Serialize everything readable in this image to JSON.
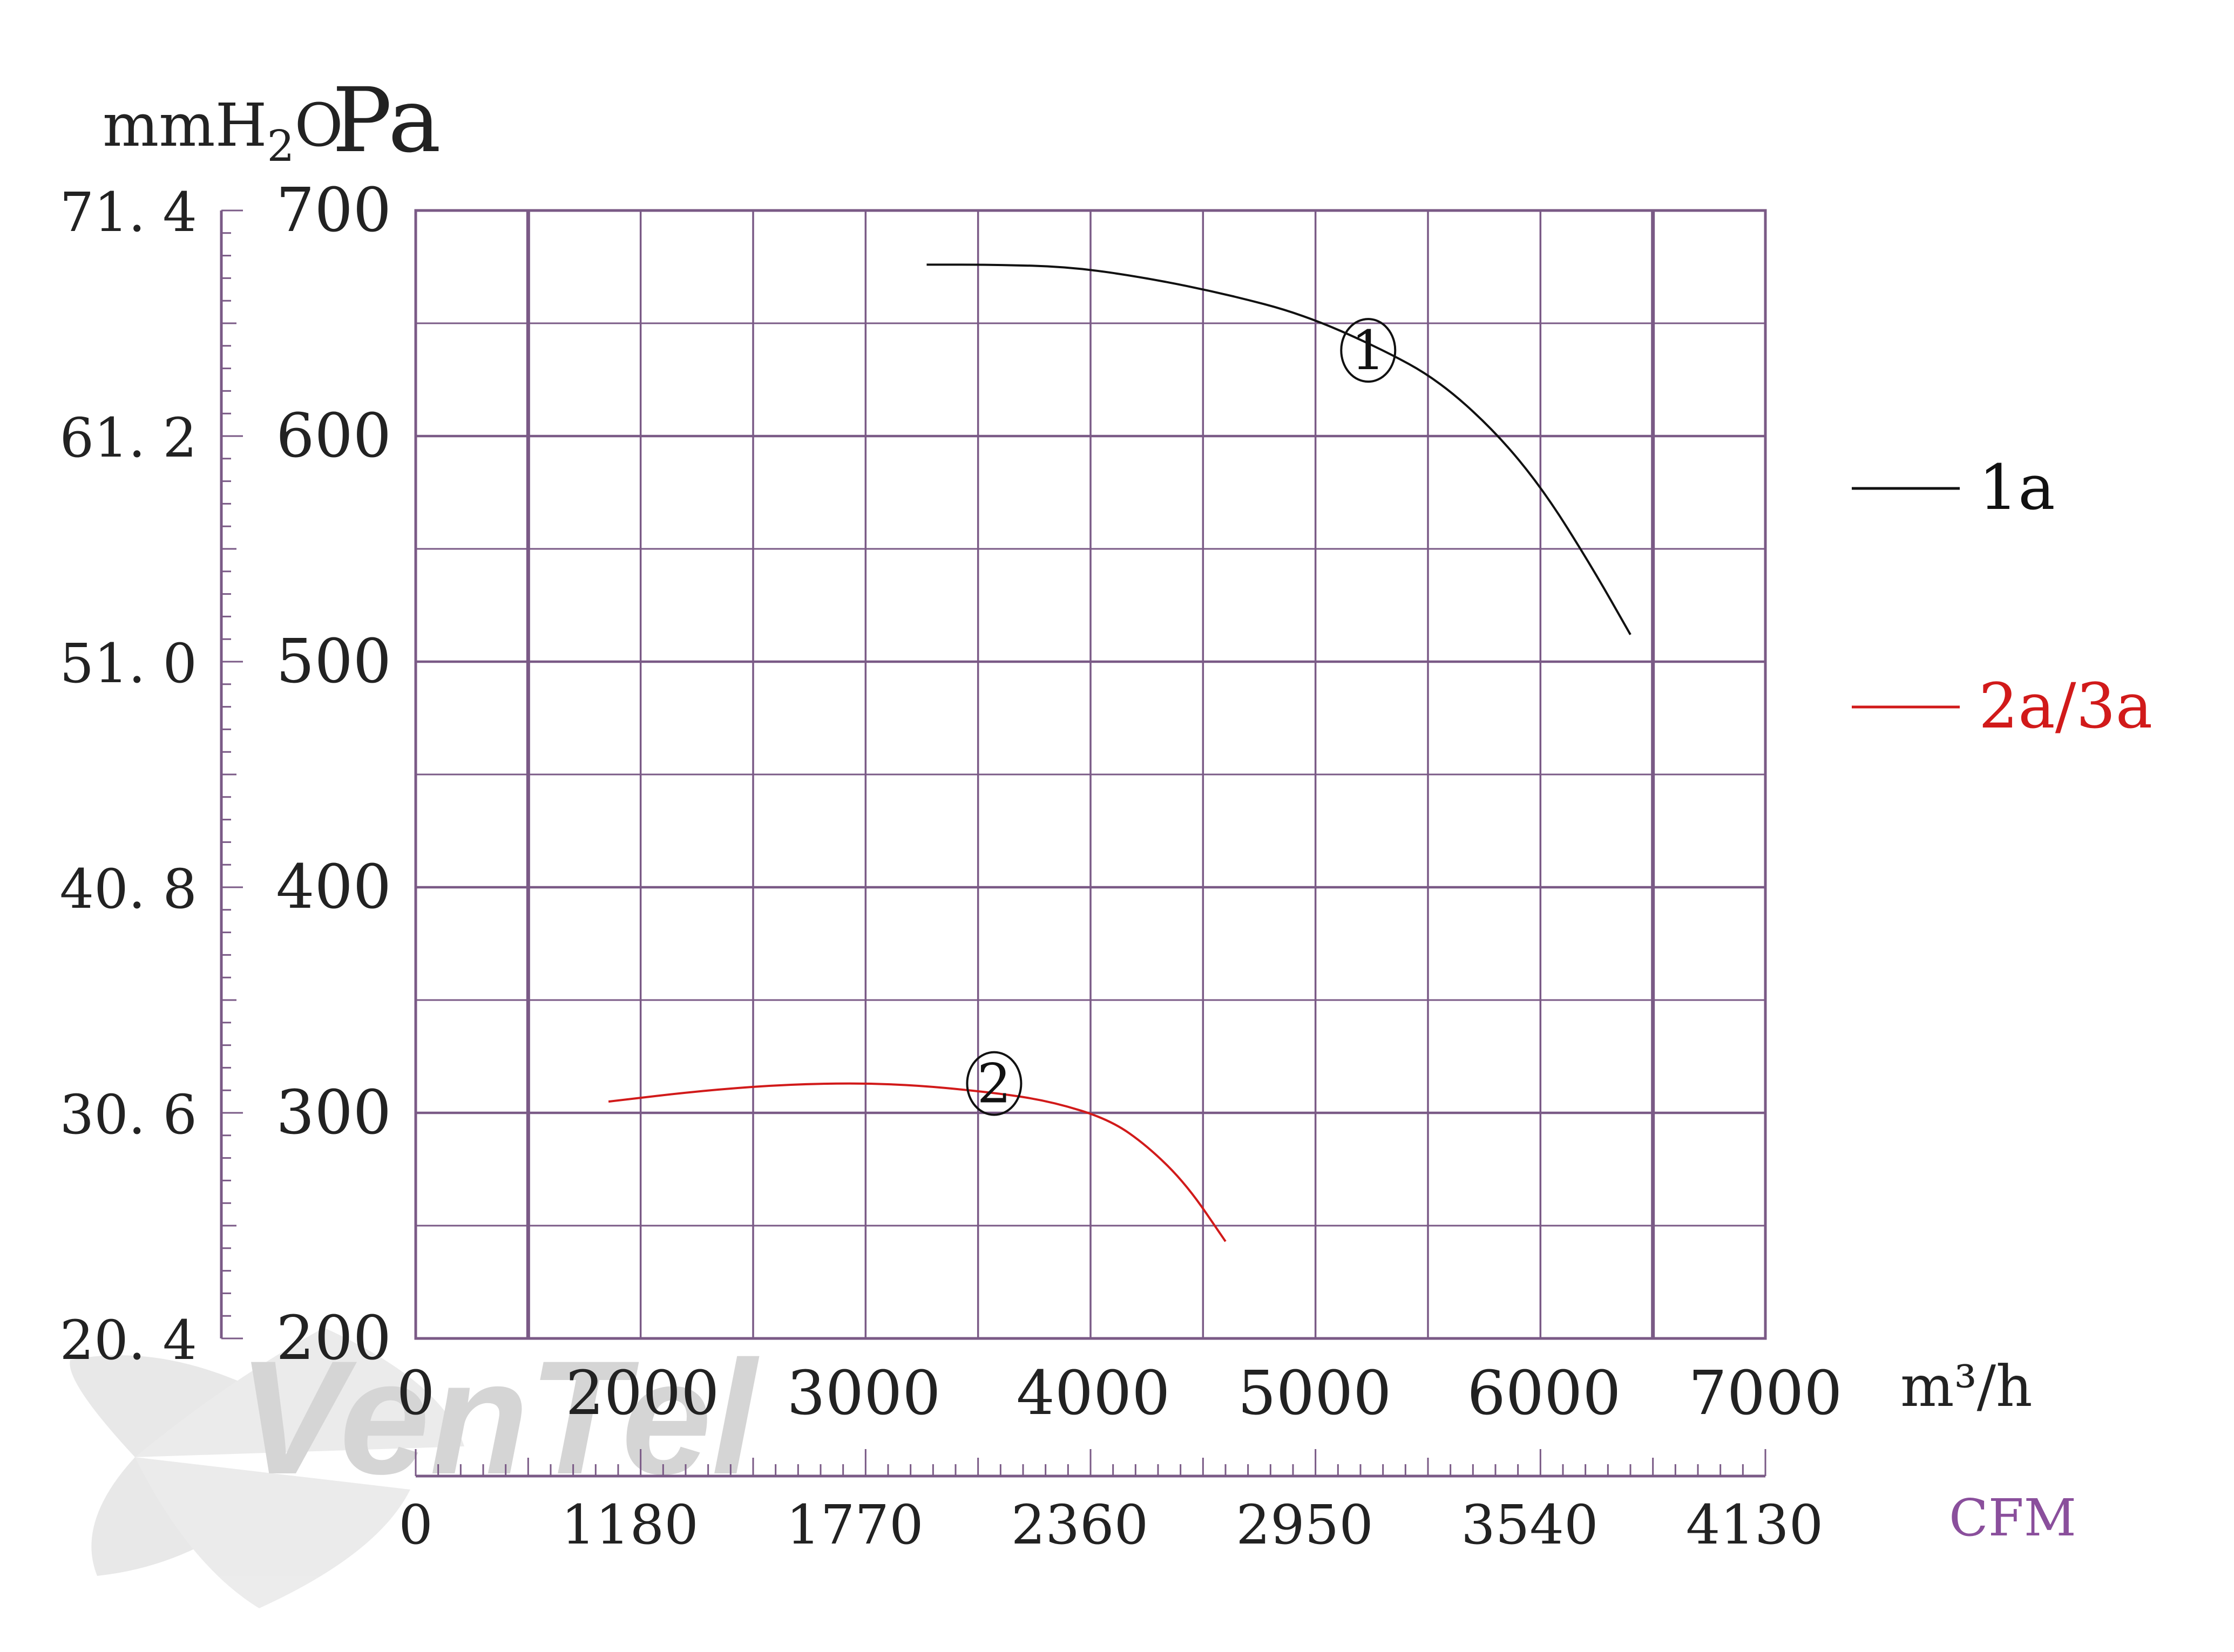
{
  "chart_data": {
    "type": "line",
    "title": "",
    "xlabel": "m³/h",
    "x2label": "CFM",
    "ylabel": "Pa",
    "y2label": "mmH₂O",
    "y2label_parts": [
      "mmH",
      "2",
      "O"
    ],
    "ylim": [
      200,
      700
    ],
    "xlim": [
      0,
      7000
    ],
    "grid": true,
    "legend_position": "right",
    "x_axis_ticks": [
      "0",
      "2000",
      "3000",
      "4000",
      "5000",
      "6000",
      "7000"
    ],
    "cfm_axis_ticks": [
      "0",
      "1180",
      "1770",
      "2360",
      "2950",
      "3540",
      "4130"
    ],
    "y_axis_ticks": [
      "700",
      "600",
      "500",
      "400",
      "300",
      "200"
    ],
    "mmh2o_axis_ticks": [
      "71. 4",
      "61. 2",
      "51. 0",
      "40. 8",
      "30. 6",
      "20. 4"
    ],
    "series": [
      {
        "name": "1a",
        "curve_label": "1",
        "color": "#111111",
        "label_at": {
          "x": 4940,
          "y": 638
        },
        "points": [
          {
            "x": 2650,
            "y": 676
          },
          {
            "x": 3000,
            "y": 676
          },
          {
            "x": 3400,
            "y": 675
          },
          {
            "x": 3800,
            "y": 670
          },
          {
            "x": 4200,
            "y": 663
          },
          {
            "x": 4600,
            "y": 654
          },
          {
            "x": 5000,
            "y": 639
          },
          {
            "x": 5300,
            "y": 625
          },
          {
            "x": 5600,
            "y": 602
          },
          {
            "x": 5850,
            "y": 576
          },
          {
            "x": 6100,
            "y": 542
          },
          {
            "x": 6300,
            "y": 512
          }
        ]
      },
      {
        "name": "2a/3a",
        "curve_label": "2",
        "color": "#d11a1a",
        "label_at": {
          "x": 3000,
          "y": 313
        },
        "points": [
          {
            "x": 1000,
            "y": 305
          },
          {
            "x": 1500,
            "y": 310
          },
          {
            "x": 2000,
            "y": 313
          },
          {
            "x": 2500,
            "y": 313
          },
          {
            "x": 3000,
            "y": 309
          },
          {
            "x": 3300,
            "y": 305
          },
          {
            "x": 3600,
            "y": 297
          },
          {
            "x": 3800,
            "y": 285
          },
          {
            "x": 4000,
            "y": 268
          },
          {
            "x": 4200,
            "y": 243
          }
        ]
      }
    ]
  },
  "watermark": {
    "text": "VenTel",
    "colors": [
      "#b3b3b3",
      "#9fc6ea"
    ]
  }
}
